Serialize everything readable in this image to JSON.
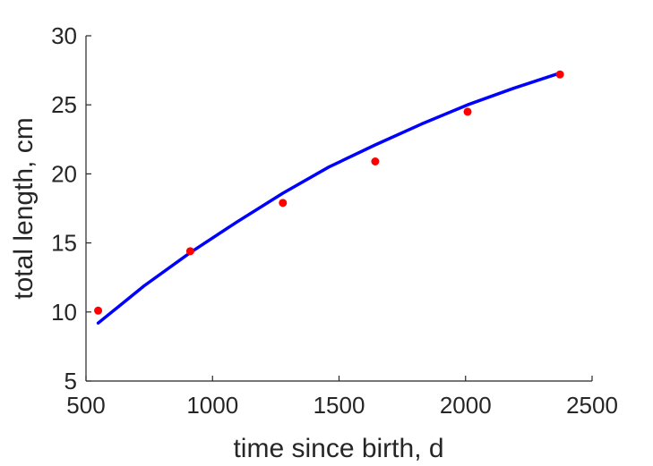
{
  "chart_data": {
    "type": "scatter",
    "title": "",
    "xlabel": "time since birth, d",
    "ylabel": "total length, cm",
    "xlim": [
      500,
      2500
    ],
    "ylim": [
      5,
      30
    ],
    "xticks": [
      500,
      1000,
      1500,
      2000,
      2500
    ],
    "yticks": [
      5,
      10,
      15,
      20,
      25,
      30
    ],
    "xtick_labels": [
      "500",
      "1000",
      "1500",
      "2000",
      "2500"
    ],
    "ytick_labels": [
      "5",
      "10",
      "15",
      "20",
      "25",
      "30"
    ],
    "grid": false,
    "legend": "none",
    "series": [
      {
        "kind": "points",
        "color": "#ff0000",
        "x": [
          548,
          912,
          1278,
          1643,
          2008,
          2373
        ],
        "y": [
          10.1,
          14.4,
          17.9,
          20.9,
          24.5,
          27.2
        ]
      },
      {
        "kind": "line",
        "color": "#0000ff",
        "x": [
          548,
          730,
          912,
          1095,
          1278,
          1460,
          1643,
          1825,
          2008,
          2190,
          2373
        ],
        "y": [
          9.2,
          11.9,
          14.3,
          16.5,
          18.6,
          20.5,
          22.1,
          23.6,
          25.0,
          26.2,
          27.3
        ]
      }
    ]
  }
}
